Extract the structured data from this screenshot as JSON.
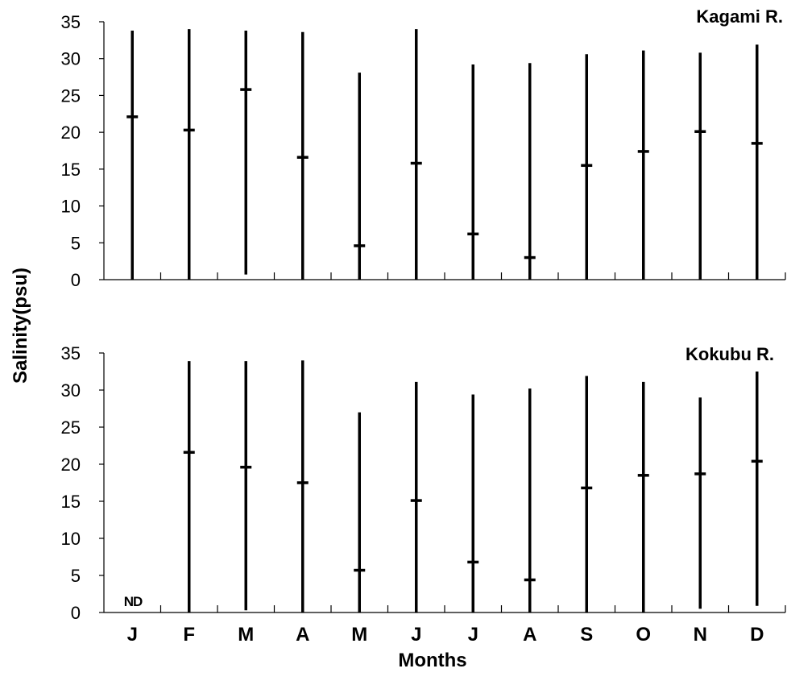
{
  "chart_data": {
    "type": "range",
    "xlabel": "Months",
    "ylabel": "Salinity(psu)",
    "categories": [
      "J",
      "F",
      "M",
      "A",
      "M",
      "J",
      "J",
      "A",
      "S",
      "O",
      "N",
      "D"
    ],
    "ylim": [
      0,
      35
    ],
    "yticks": [
      0,
      5,
      10,
      15,
      20,
      25,
      30,
      35
    ],
    "panels": [
      {
        "title": "Kagami R.",
        "series": [
          {
            "min": 0,
            "mean": 22.1,
            "max": 33.8
          },
          {
            "min": 0,
            "mean": 20.3,
            "max": 34.0
          },
          {
            "min": 0.7,
            "mean": 25.8,
            "max": 33.8
          },
          {
            "min": 0,
            "mean": 16.6,
            "max": 33.6
          },
          {
            "min": 0,
            "mean": 4.6,
            "max": 28.1
          },
          {
            "min": 0,
            "mean": 15.8,
            "max": 34.0
          },
          {
            "min": 0,
            "mean": 6.2,
            "max": 29.2
          },
          {
            "min": 0,
            "mean": 3.0,
            "max": 29.4
          },
          {
            "min": 0,
            "mean": 15.5,
            "max": 30.6
          },
          {
            "min": 0,
            "mean": 17.4,
            "max": 31.1
          },
          {
            "min": 0,
            "mean": 20.1,
            "max": 30.8
          },
          {
            "min": 0,
            "mean": 18.5,
            "max": 31.9
          }
        ]
      },
      {
        "title": "Kokubu R.",
        "note": "ND",
        "series": [
          null,
          {
            "min": 0,
            "mean": 21.6,
            "max": 33.9
          },
          {
            "min": 0.3,
            "mean": 19.6,
            "max": 33.9
          },
          {
            "min": 0,
            "mean": 17.5,
            "max": 34.0
          },
          {
            "min": 0,
            "mean": 5.7,
            "max": 27.0
          },
          {
            "min": 0,
            "mean": 15.1,
            "max": 31.1
          },
          {
            "min": 0,
            "mean": 6.8,
            "max": 29.4
          },
          {
            "min": 0,
            "mean": 4.4,
            "max": 30.2
          },
          {
            "min": 0,
            "mean": 16.8,
            "max": 31.9
          },
          {
            "min": 0,
            "mean": 18.5,
            "max": 31.1
          },
          {
            "min": 0.5,
            "mean": 18.7,
            "max": 29.0
          },
          {
            "min": 0.9,
            "mean": 20.4,
            "max": 32.5
          }
        ]
      }
    ]
  }
}
